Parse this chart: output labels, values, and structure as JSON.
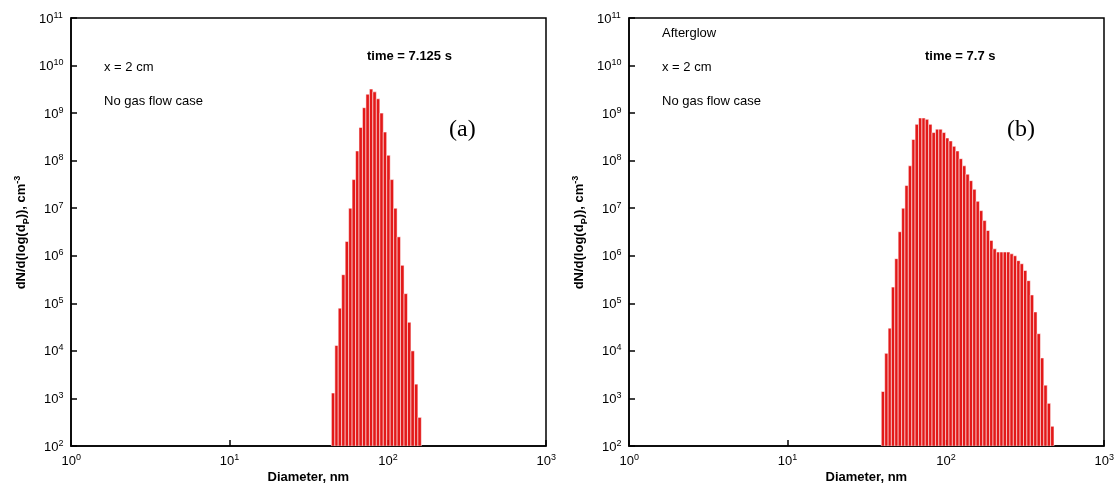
{
  "chart_data": [
    {
      "type": "histogram",
      "xlabel": "Diameter, nm",
      "ylabel": "dN/d(log(d$_{P}$)), cm$^{-3}$",
      "color": "#e00000",
      "log": "xy",
      "annotations": [
        "x = 2 cm",
        "No gas flow case",
        "time = 7.125 s",
        "(a)"
      ],
      "bins": [
        44.1,
        46.4,
        48.7,
        51.2,
        53.9,
        56.7,
        59.6,
        62.7,
        65.9,
        69.3,
        72.9,
        76.7,
        80.6,
        84.8,
        89.2,
        93.8,
        98.6,
        103.7,
        109.1,
        114.7,
        120.6,
        126.9,
        133.4,
        140.3,
        147.6,
        155.2,
        163.2
      ],
      "values": [
        1300.0,
        13000.0,
        79000.0,
        400000.0,
        2000000.0,
        10000000.0,
        40000000.0,
        160000000.0,
        500000000.0,
        1300000000.0,
        2500000000.0,
        3200000000.0,
        2800000000.0,
        2000000000.0,
        1000000000.0,
        400000000.0,
        130000000.0,
        40000000.0,
        10000000.0,
        2500000.0,
        630000.0,
        160000.0,
        40000.0,
        10000.0,
        2000.0,
        400.0
      ],
      "xlim": [
        1,
        1000
      ],
      "ylim": [
        100,
        100000000000.0
      ],
      "xticks": [
        {
          "value": 1,
          "label": "10$^{0}$"
        },
        {
          "value": 10,
          "label": "10$^{1}$"
        },
        {
          "value": 100,
          "label": "10$^{2}$"
        },
        {
          "value": 1000,
          "label": "10$^{3}$"
        }
      ],
      "yticks": [
        {
          "value": 100,
          "label": "10$^{2}$"
        },
        {
          "value": 1000,
          "label": "10$^{3}$"
        },
        {
          "value": 10000,
          "label": "10$^{4}$"
        },
        {
          "value": 100000,
          "label": "10$^{5}$"
        },
        {
          "value": 1000000,
          "label": "10$^{6}$"
        },
        {
          "value": 10000000,
          "label": "10$^{7}$"
        },
        {
          "value": 100000000,
          "label": "10$^{8}$"
        },
        {
          "value": 1000000000,
          "label": "10$^{9}$"
        },
        {
          "value": 10000000000,
          "label": "10$^{10}$"
        },
        {
          "value": 100000000000,
          "label": "10$^{11}$"
        }
      ]
    },
    {
      "type": "histogram",
      "xlabel": "Diameter, nm",
      "ylabel": "dN/d(log(d$_{P}$)), cm$^{-3}$",
      "color": "#e00000",
      "log": "xy",
      "annotations": [
        "Afterglow",
        "x = 2 cm",
        "No gas flow case",
        "time = 7.7 s",
        "(b)"
      ],
      "bins": [
        39.2,
        41.2,
        43.3,
        45.4,
        47.7,
        50.1,
        52.7,
        55.3,
        58.1,
        61.1,
        64.1,
        67.4,
        70.8,
        74.3,
        78.1,
        82.0,
        86.2,
        90.5,
        95.1,
        99.9,
        104.9,
        110.2,
        115.8,
        121.6,
        127.8,
        134.2,
        141.0,
        148.1,
        155.6,
        163.4,
        171.7,
        180.4,
        189.5,
        199.0,
        209.1,
        219.7,
        230.8,
        242.4,
        254.7,
        267.5,
        281.0,
        295.2,
        310.1,
        325.8,
        342.3,
        359.6,
        377.7,
        396.8,
        416.8,
        437.9,
        460.0,
        483.2
      ],
      "values": [
        1400.0,
        8900.0,
        30000.0,
        220000.0,
        870000.0,
        3200000.0,
        10000000.0,
        30000000.0,
        78000000.0,
        280000000.0,
        580000000.0,
        790000000.0,
        790000000.0,
        740000000.0,
        580000000.0,
        390000000.0,
        460000000.0,
        460000000.0,
        390000000.0,
        300000000.0,
        260000000.0,
        200000000.0,
        160000000.0,
        110000000.0,
        78000000.0,
        52000000.0,
        38000000.0,
        25000000.0,
        14000000.0,
        8900000.0,
        5500000.0,
        3400000.0,
        2100000.0,
        1400000.0,
        1200000.0,
        1200000.0,
        1200000.0,
        1200000.0,
        1100000.0,
        1000000.0,
        790000.0,
        680000.0,
        490000.0,
        300000.0,
        150000.0,
        66000.0,
        23000.0,
        7100.0,
        1900.0,
        790.0,
        260.0
      ],
      "xlim": [
        1,
        1000
      ],
      "ylim": [
        100,
        100000000000.0
      ],
      "xticks": [
        {
          "value": 1,
          "label": "10$^{0}$"
        },
        {
          "value": 10,
          "label": "10$^{1}$"
        },
        {
          "value": 100,
          "label": "10$^{2}$"
        },
        {
          "value": 1000,
          "label": "10$^{3}$"
        }
      ],
      "yticks": [
        {
          "value": 100,
          "label": "10$^{2}$"
        },
        {
          "value": 1000,
          "label": "10$^{3}$"
        },
        {
          "value": 10000,
          "label": "10$^{4}$"
        },
        {
          "value": 100000,
          "label": "10$^{5}$"
        },
        {
          "value": 1000000,
          "label": "10$^{6}$"
        },
        {
          "value": 10000000,
          "label": "10$^{7}$"
        },
        {
          "value": 100000000,
          "label": "10$^{8}$"
        },
        {
          "value": 1000000000,
          "label": "10$^{9}$"
        },
        {
          "value": 10000000000,
          "label": "10$^{10}$"
        },
        {
          "value": 100000000000,
          "label": "10$^{11}$"
        }
      ]
    }
  ]
}
